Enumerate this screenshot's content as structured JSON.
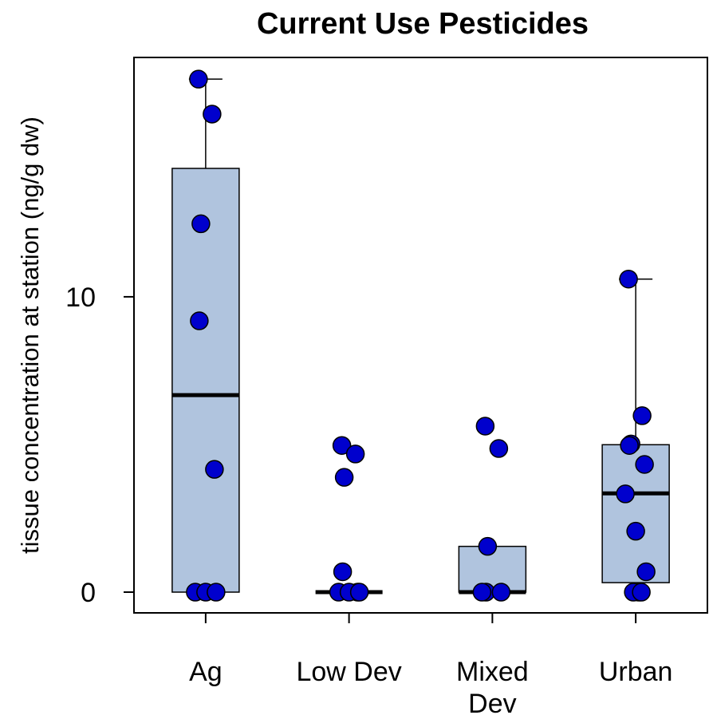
{
  "chart_data": {
    "type": "box",
    "title": "Current Use Pesticides",
    "y_label": "tissue concentration at station (ng/g dw)",
    "y_scale": "log1p",
    "categories": [
      "Ag",
      "Low Dev",
      "Mixed Dev",
      "Urban"
    ],
    "ylim": [
      -0.155,
      75.8
    ],
    "yticks": [
      0,
      10
    ],
    "box_color": "#b0c4de",
    "point_color": "#0000cd",
    "boxes": [
      {
        "q1": 0,
        "median": 3.95,
        "q3": 30.2,
        "whisker_high": 63.4
      },
      {
        "q1": 0,
        "median": 0,
        "q3": 0
      },
      {
        "q1": 0,
        "median": 0,
        "q3": 0.45
      },
      {
        "q1": 0.08,
        "median": 1.23,
        "q3": 2.31,
        "whisker_high": 11.7
      }
    ],
    "points": [
      [
        63.4,
        47.5,
        18.9,
        8.05,
        1.71,
        0,
        0,
        0
      ],
      [
        2.29,
        2.07,
        1.54,
        0.18,
        0,
        0,
        0,
        0
      ],
      [
        2.85,
        2.21,
        0.45,
        0,
        0,
        0
      ],
      [
        11.7,
        3.19,
        2.33,
        2.29,
        1.82,
        1.22,
        0.64,
        0.18,
        0,
        0,
        0
      ]
    ]
  }
}
